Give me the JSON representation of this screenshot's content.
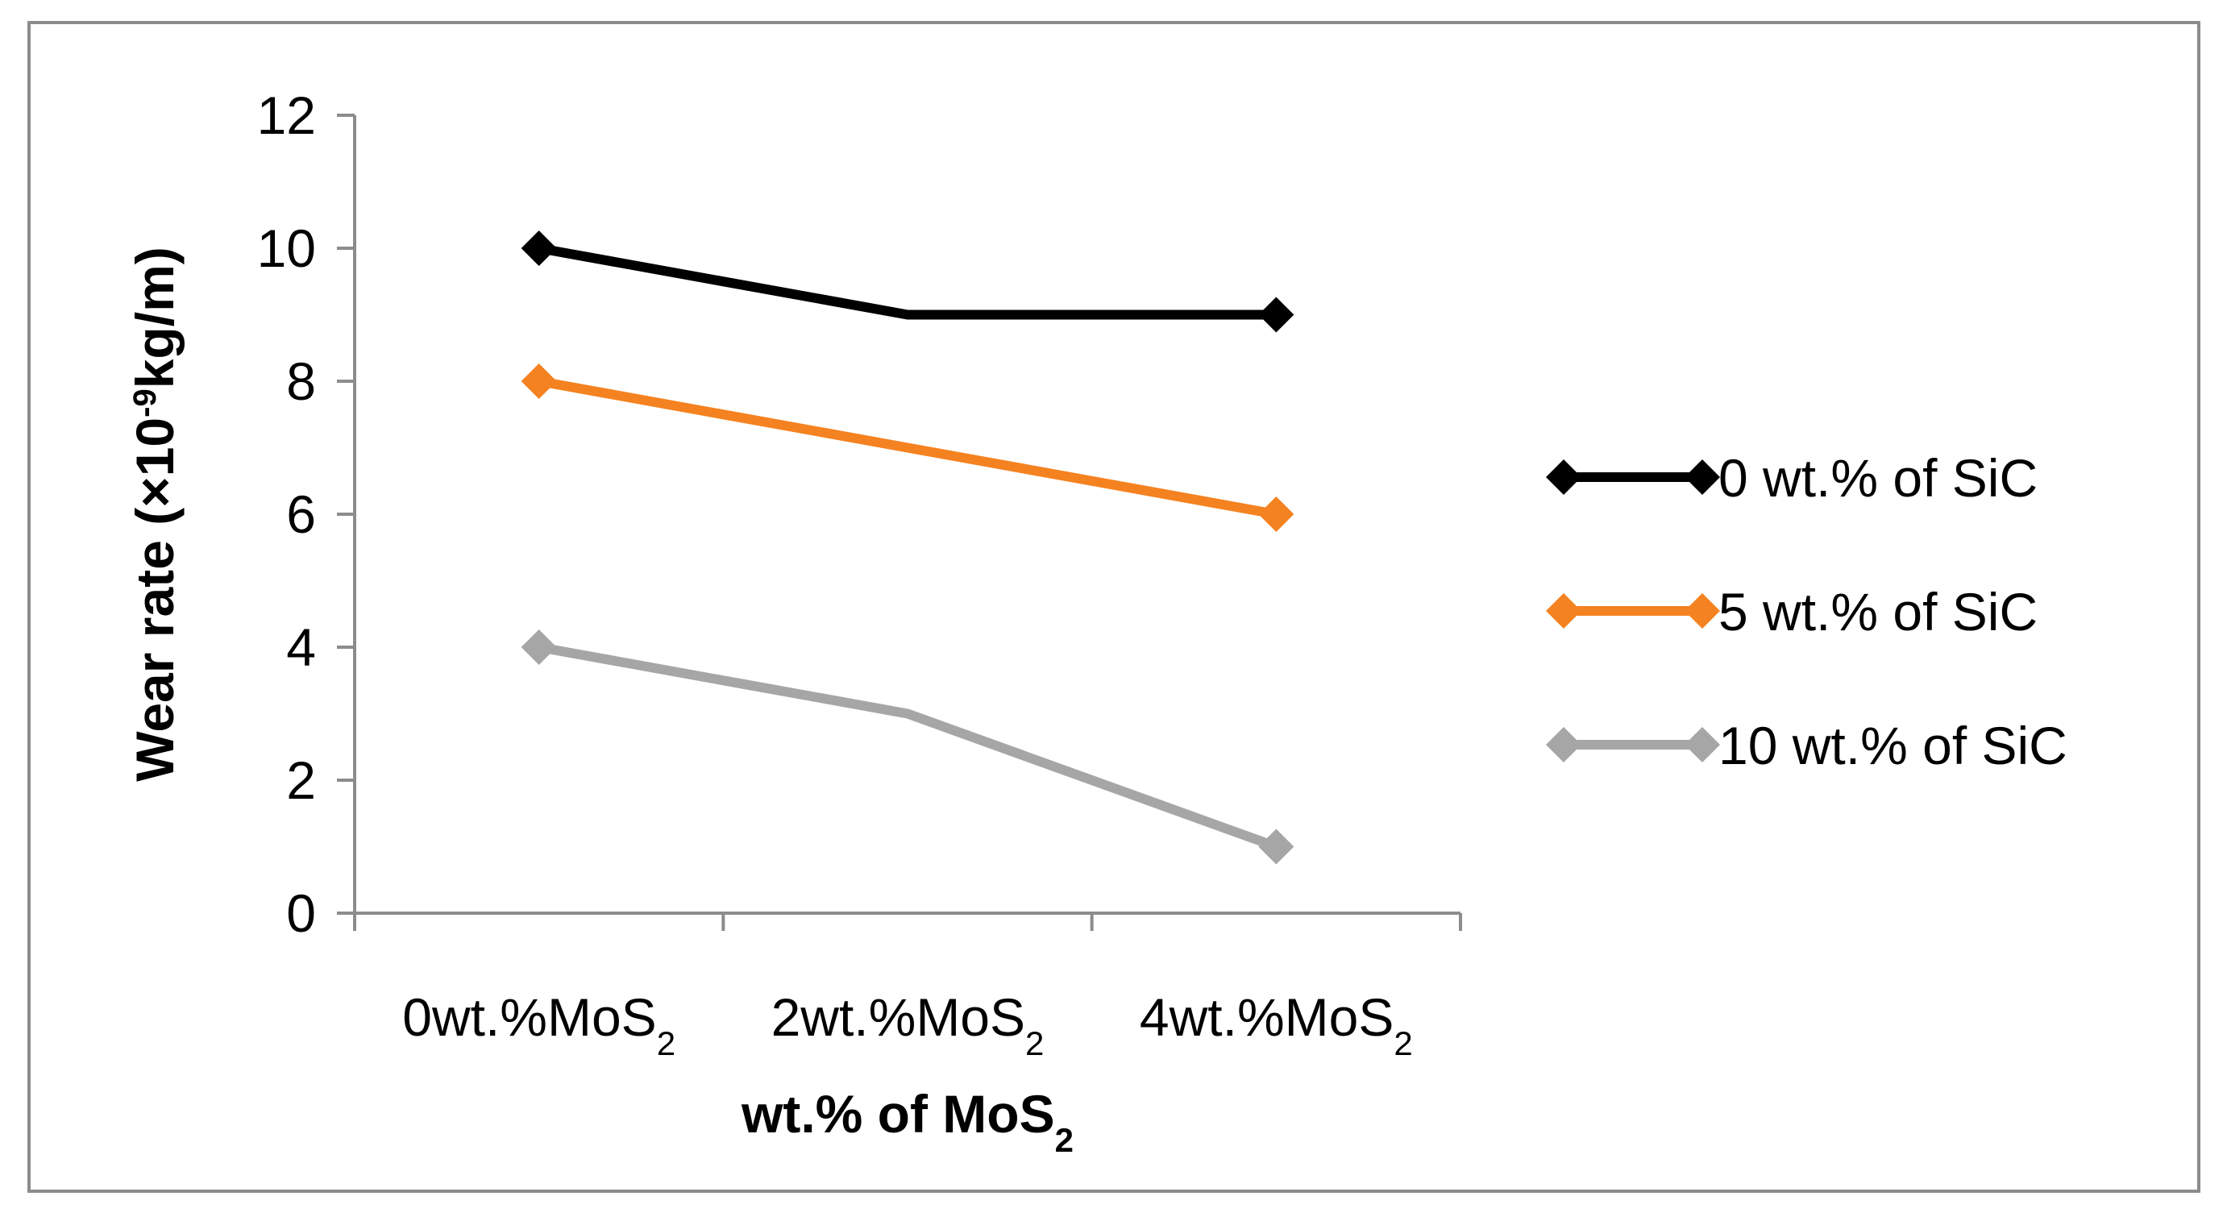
{
  "chart_data": {
    "type": "line",
    "title": "",
    "categories": [
      "0wt.%MoS2",
      "2wt.%MoS2",
      "4wt.%MoS2"
    ],
    "category_parts": [
      {
        "main": "0wt.%MoS",
        "sub": "2"
      },
      {
        "main": "2wt.%MoS",
        "sub": "2"
      },
      {
        "main": "4wt.%MoS",
        "sub": "2"
      }
    ],
    "xlabel": {
      "main": "wt.% of MoS",
      "sub": "2"
    },
    "ylabel": {
      "pre": "Wear rate (×10",
      "sup": "-9",
      "post": "kg/m)"
    },
    "ylim": [
      0,
      12
    ],
    "yticks": [
      0,
      2,
      4,
      6,
      8,
      10,
      12
    ],
    "grid": false,
    "legend_position": "right",
    "series": [
      {
        "name": "0 wt.% of SiC",
        "values": [
          10,
          9,
          9
        ],
        "color": "#000000",
        "marker": "diamond"
      },
      {
        "name": "5 wt.% of SiC",
        "values": [
          8,
          7,
          6
        ],
        "color": "#F58220",
        "marker": "diamond"
      },
      {
        "name": "10 wt.% of SiC",
        "values": [
          4,
          3,
          1
        ],
        "color": "#A6A6A6",
        "marker": "diamond"
      }
    ]
  }
}
